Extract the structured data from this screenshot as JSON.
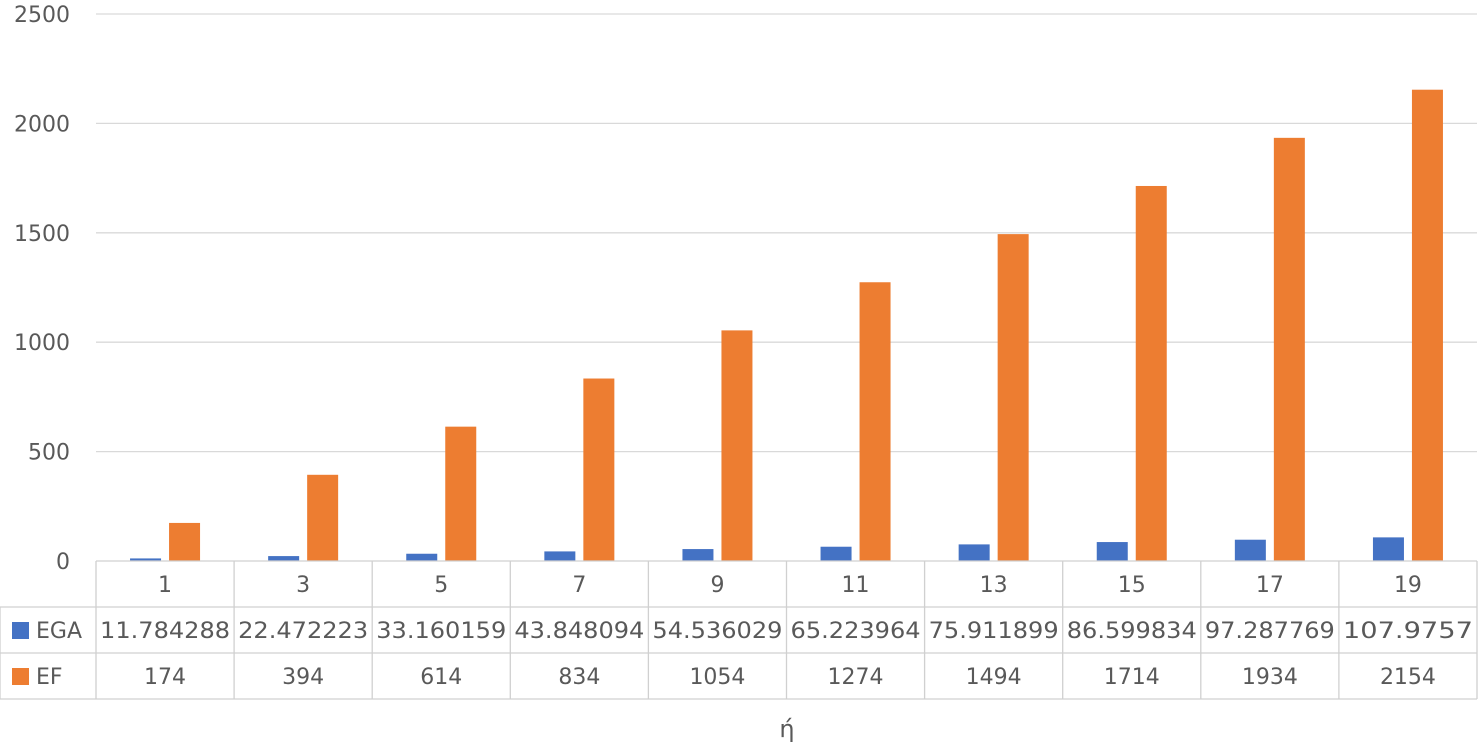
{
  "chart_data": {
    "type": "bar",
    "categories": [
      "1",
      "3",
      "5",
      "7",
      "9",
      "11",
      "13",
      "15",
      "17",
      "19"
    ],
    "series": [
      {
        "name": "EGA",
        "color": "#4472C4",
        "values": [
          11.784288,
          22.472223,
          33.160159,
          43.848094,
          54.536029,
          65.223964,
          75.911899,
          86.599834,
          97.287769,
          107.9757
        ],
        "labels": [
          "11.784288",
          "22.472223",
          "33.160159",
          "43.848094",
          "54.536029",
          "65.223964",
          "75.911899",
          "86.599834",
          "97.287769",
          "107.9757"
        ]
      },
      {
        "name": "EF",
        "color": "#ED7D31",
        "values": [
          174,
          394,
          614,
          834,
          1054,
          1274,
          1494,
          1714,
          1934,
          2154
        ],
        "labels": [
          "174",
          "394",
          "614",
          "834",
          "1054",
          "1274",
          "1494",
          "1714",
          "1934",
          "2154"
        ]
      }
    ],
    "yticks": [
      "0",
      "500",
      "1000",
      "1500",
      "2000",
      "2500"
    ],
    "ylim": [
      0,
      2500
    ],
    "xlabel": "ή",
    "ylabel": "",
    "title": "",
    "grid": true,
    "legend": "data-table"
  }
}
